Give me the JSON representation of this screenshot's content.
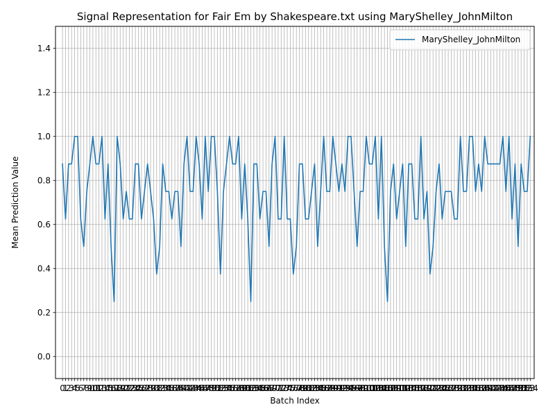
{
  "chart_data": {
    "type": "line",
    "title": "Signal Representation for Fair Em by Shakespeare.txt using MaryShelley_JohnMilton",
    "xlabel": "Batch Index",
    "ylabel": "Mean Prediction Value",
    "ylim": [
      -0.1,
      1.5
    ],
    "xlim": [
      -2.3,
      155.3
    ],
    "yticks": [
      0.0,
      0.2,
      0.4,
      0.6,
      0.8,
      1.0,
      1.2,
      1.4
    ],
    "ytick_labels": [
      "0.0",
      "0.2",
      "0.4",
      "0.6",
      "0.8",
      "1.0",
      "1.2",
      "1.4"
    ],
    "grid": true,
    "legend_position": "upper-right",
    "color": "#1f77b4",
    "series": [
      {
        "name": "MaryShelley_JohnMilton",
        "values": [
          0.875,
          0.625,
          0.875,
          0.875,
          1.0,
          1.0,
          0.625,
          0.5,
          0.75,
          0.875,
          1.0,
          0.875,
          0.875,
          1.0,
          0.625,
          0.875,
          0.5,
          0.25,
          1.0,
          0.875,
          0.625,
          0.75,
          0.625,
          0.625,
          0.875,
          0.875,
          0.625,
          0.75,
          0.875,
          0.75,
          0.625,
          0.375,
          0.5,
          0.875,
          0.75,
          0.75,
          0.625,
          0.75,
          0.75,
          0.5,
          0.875,
          1.0,
          0.75,
          0.75,
          1.0,
          0.875,
          0.625,
          1.0,
          0.75,
          1.0,
          1.0,
          0.75,
          0.375,
          0.75,
          0.875,
          1.0,
          0.875,
          0.875,
          1.0,
          0.625,
          0.875,
          0.625,
          0.25,
          0.875,
          0.875,
          0.625,
          0.75,
          0.75,
          0.5,
          0.875,
          1.0,
          0.625,
          0.625,
          1.0,
          0.625,
          0.625,
          0.375,
          0.5,
          0.875,
          0.875,
          0.625,
          0.625,
          0.75,
          0.875,
          0.5,
          0.75,
          1.0,
          0.75,
          0.75,
          1.0,
          0.875,
          0.75,
          0.875,
          0.75,
          1.0,
          1.0,
          0.75,
          0.5,
          0.75,
          0.75,
          1.0,
          0.875,
          0.875,
          1.0,
          0.625,
          1.0,
          0.5,
          0.25,
          0.75,
          0.875,
          0.625,
          0.75,
          0.875,
          0.5,
          0.875,
          0.875,
          0.625,
          0.625,
          1.0,
          0.625,
          0.75,
          0.375,
          0.5,
          0.75,
          0.875,
          0.625,
          0.75,
          0.75,
          0.75,
          0.625,
          0.625,
          1.0,
          0.75,
          0.75,
          1.0,
          1.0,
          0.75,
          0.875,
          0.75,
          1.0,
          0.875,
          0.875,
          0.875,
          0.875,
          0.875,
          1.0,
          0.75,
          1.0,
          0.625,
          0.875,
          0.5,
          0.875,
          0.75,
          0.75,
          1.0
        ]
      }
    ]
  }
}
